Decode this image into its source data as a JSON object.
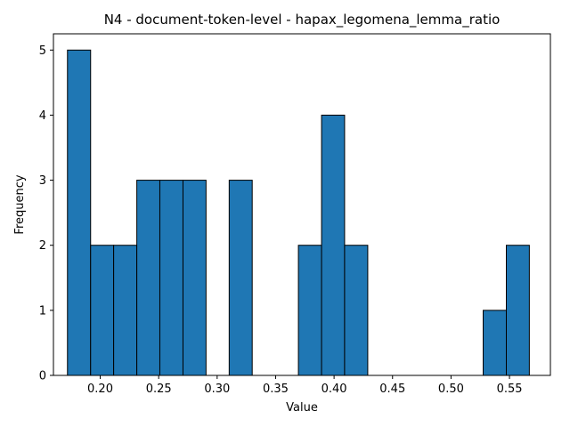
{
  "chart_data": {
    "type": "bar",
    "title": "N4 - document-token-level - hapax_legomena_lemma_ratio",
    "xlabel": "Value",
    "ylabel": "Frequency",
    "xlim": [
      0.16,
      0.585
    ],
    "ylim": [
      0,
      5.25
    ],
    "x_ticks": [
      "0.20",
      "0.25",
      "0.30",
      "0.35",
      "0.40",
      "0.45",
      "0.50",
      "0.55"
    ],
    "x_tick_values": [
      0.2,
      0.25,
      0.3,
      0.35,
      0.4,
      0.45,
      0.5,
      0.55
    ],
    "y_ticks": [
      "0",
      "1",
      "2",
      "3",
      "4",
      "5"
    ],
    "y_tick_values": [
      0,
      1,
      2,
      3,
      4,
      5
    ],
    "bin_edges": [
      0.172,
      0.1918,
      0.2115,
      0.2313,
      0.251,
      0.2708,
      0.2905,
      0.3103,
      0.33,
      0.3498,
      0.3695,
      0.3893,
      0.409,
      0.4288,
      0.4485,
      0.4683,
      0.488,
      0.5078,
      0.5275,
      0.5473,
      0.567
    ],
    "values": [
      5,
      2,
      2,
      3,
      3,
      3,
      0,
      3,
      0,
      0,
      2,
      4,
      2,
      0,
      0,
      0,
      0,
      0,
      1,
      2
    ],
    "bar_color": "#1f77b4",
    "edge_color": "#000000",
    "grid": false,
    "legend": false
  }
}
